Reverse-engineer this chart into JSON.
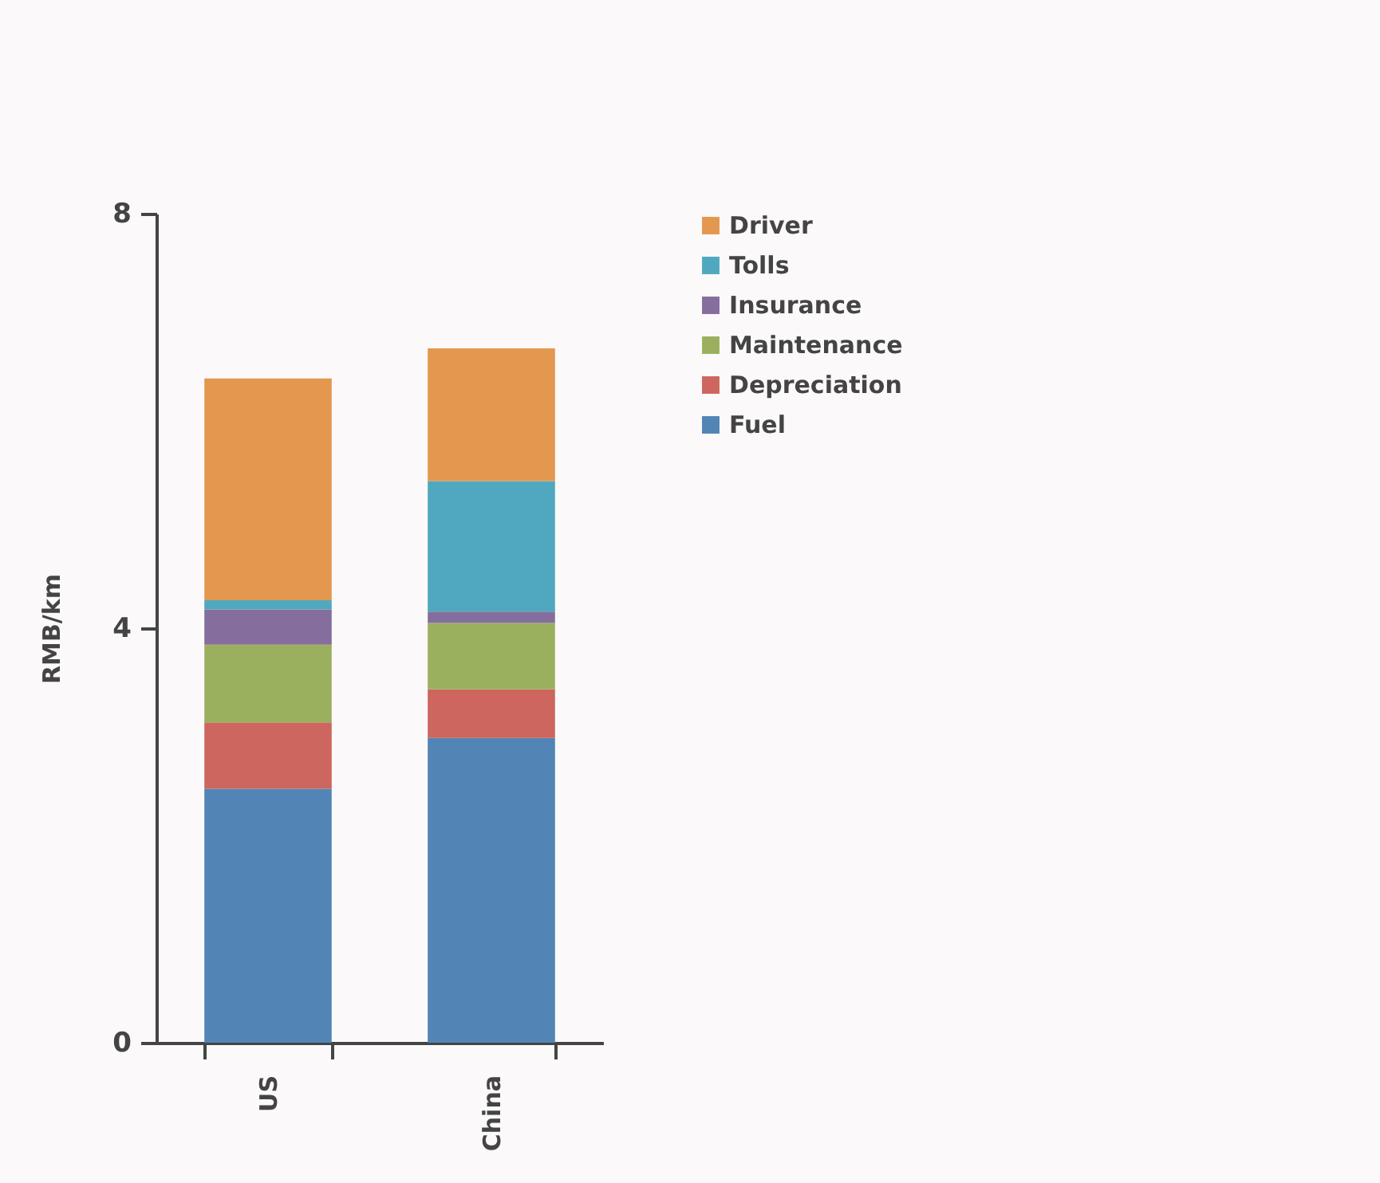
{
  "chart_data": {
    "type": "bar",
    "stacked": true,
    "ylabel": "RMB/km",
    "categories": [
      "US",
      "China"
    ],
    "series": [
      {
        "name": "Fuel",
        "color": "#5284b5",
        "values": [
          2.45,
          2.94
        ]
      },
      {
        "name": "Depreciation",
        "color": "#cc665e",
        "values": [
          0.64,
          0.47
        ]
      },
      {
        "name": "Maintenance",
        "color": "#9bb05e",
        "values": [
          0.75,
          0.64
        ]
      },
      {
        "name": "Insurance",
        "color": "#856e9e",
        "values": [
          0.34,
          0.11
        ]
      },
      {
        "name": "Tolls",
        "color": "#4fa8bf",
        "values": [
          0.09,
          1.26
        ]
      },
      {
        "name": "Driver",
        "color": "#e3974f",
        "values": [
          2.14,
          1.28
        ]
      }
    ],
    "ylim": [
      0,
      8
    ],
    "yticks": [
      0,
      4,
      8
    ],
    "legend": "right"
  }
}
